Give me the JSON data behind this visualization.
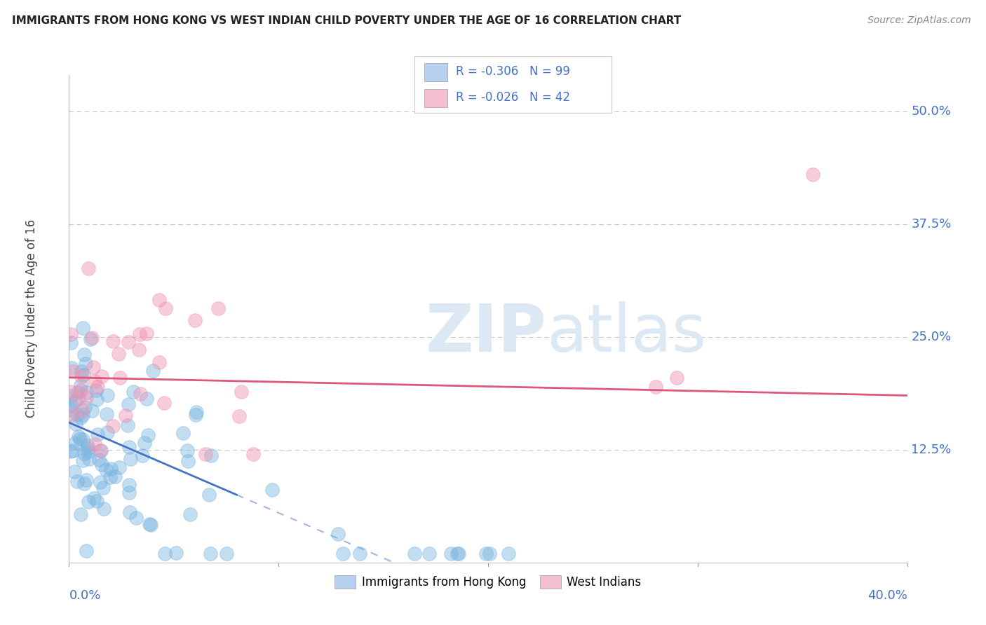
{
  "title": "IMMIGRANTS FROM HONG KONG VS WEST INDIAN CHILD POVERTY UNDER THE AGE OF 16 CORRELATION CHART",
  "source": "Source: ZipAtlas.com",
  "ylabel": "Child Poverty Under the Age of 16",
  "x_range": [
    0.0,
    0.4
  ],
  "y_range": [
    0.0,
    0.54
  ],
  "legend_r1": "R = -0.306   N = 99",
  "legend_r2": "R = -0.026   N = 42",
  "legend_color1": "#b8d0f0",
  "legend_color2": "#f5bece",
  "series1_color": "#7ab5e0",
  "series2_color": "#f090b0",
  "regression1_color": "#4472C4",
  "regression2_color": "#e05878",
  "watermark_color": "#dce9f5",
  "background_color": "#ffffff",
  "grid_color": "#c8c8c8",
  "right_label_color": "#4472C4",
  "title_color": "#222222",
  "source_color": "#888888"
}
